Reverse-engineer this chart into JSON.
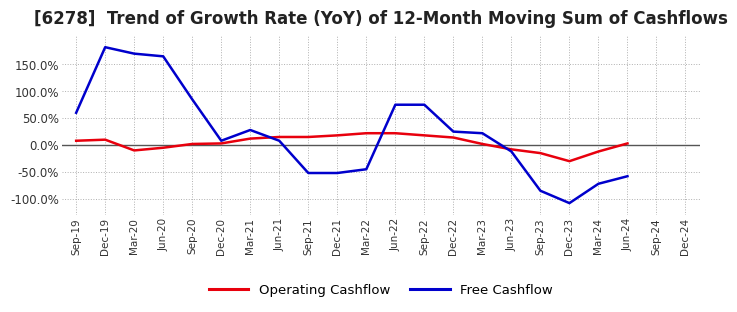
{
  "title": "[6278]  Trend of Growth Rate (YoY) of 12-Month Moving Sum of Cashflows",
  "title_fontsize": 12,
  "x_labels": [
    "Sep-19",
    "Dec-19",
    "Mar-20",
    "Jun-20",
    "Sep-20",
    "Dec-20",
    "Mar-21",
    "Jun-21",
    "Sep-21",
    "Dec-21",
    "Mar-22",
    "Jun-22",
    "Sep-22",
    "Dec-22",
    "Mar-23",
    "Jun-23",
    "Sep-23",
    "Dec-23",
    "Mar-24",
    "Jun-24",
    "Sep-24",
    "Dec-24"
  ],
  "operating_cashflow": [
    8,
    10,
    -10,
    -5,
    2,
    3,
    12,
    15,
    15,
    18,
    22,
    22,
    18,
    14,
    2,
    -8,
    -15,
    -30,
    -12,
    3,
    null,
    null
  ],
  "free_cashflow": [
    60,
    182,
    170,
    165,
    85,
    8,
    28,
    8,
    -52,
    -52,
    -45,
    75,
    75,
    25,
    22,
    -12,
    -85,
    -108,
    -72,
    -58,
    null,
    null
  ],
  "op_color": "#e8000d",
  "free_color": "#0000cc",
  "bg_color": "#ffffff",
  "grid_color": "#b0b0b0",
  "ylim": [
    -130,
    205
  ],
  "yticks": [
    -100,
    -50,
    0,
    50,
    100,
    150
  ],
  "legend_labels": [
    "Operating Cashflow",
    "Free Cashflow"
  ],
  "zero_line_color": "#555555",
  "line_width": 1.8
}
